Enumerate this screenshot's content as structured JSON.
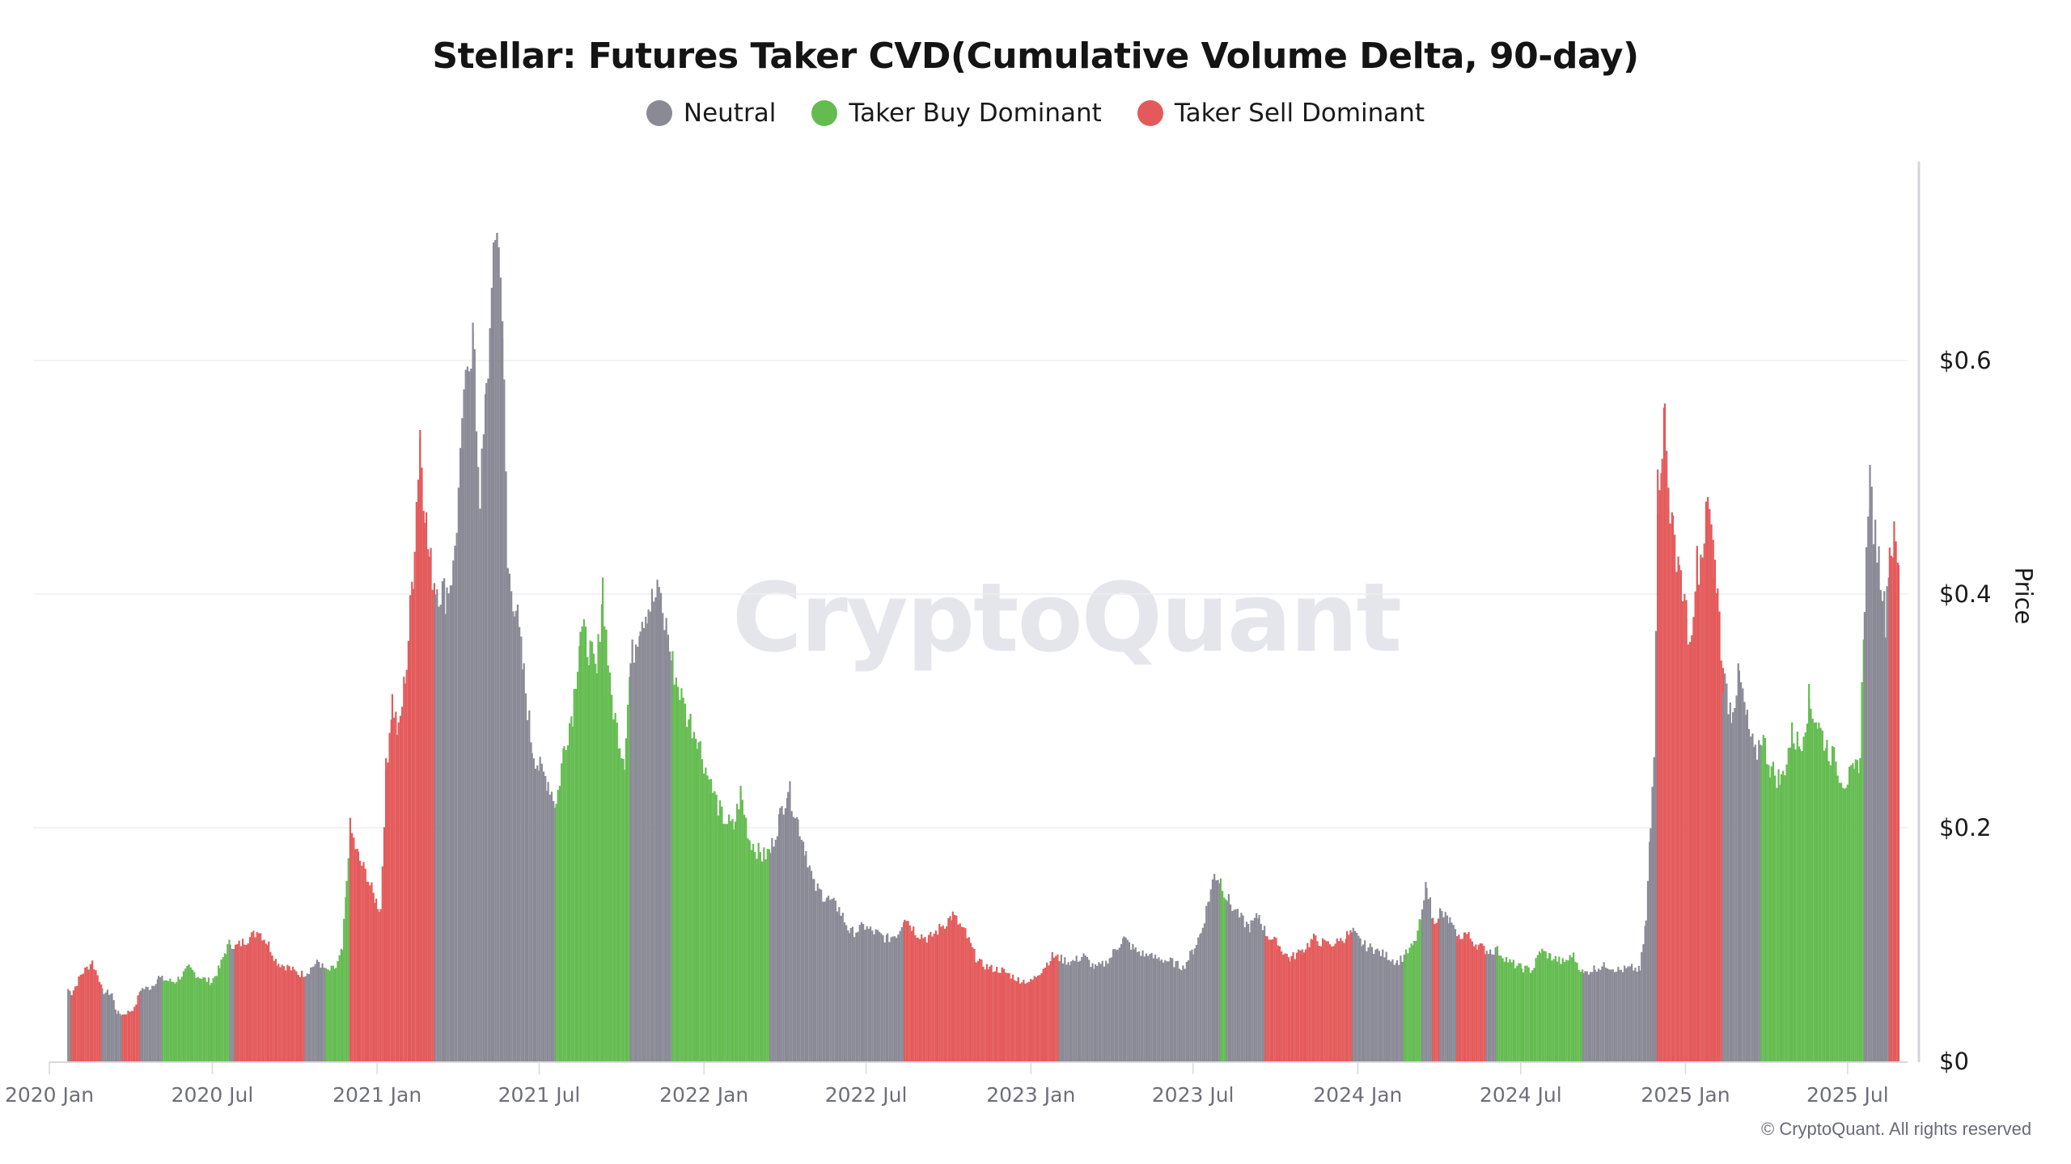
{
  "title": "Stellar: Futures Taker CVD(Cumulative Volume Delta, 90-day)",
  "legend": [
    {
      "key": "n",
      "label": "Neutral",
      "color": "#8a8a96"
    },
    {
      "key": "b",
      "label": "Taker Buy Dominant",
      "color": "#64bc50"
    },
    {
      "key": "s",
      "label": "Taker Sell Dominant",
      "color": "#e45a5a"
    }
  ],
  "watermark": "CryptoQuant",
  "copyright": "© CryptoQuant. All rights reserved",
  "y_axis": {
    "title": "Price",
    "ticks": [
      {
        "value": 0,
        "label": "$0"
      },
      {
        "value": 0.2,
        "label": "$0.2"
      },
      {
        "value": 0.4,
        "label": "$0.4"
      },
      {
        "value": 0.6,
        "label": "$0.6"
      }
    ]
  },
  "x_axis": {
    "ticks": [
      {
        "date": "2020-01-01",
        "label": "2020 Jan"
      },
      {
        "date": "2020-07-01",
        "label": "2020 Jul"
      },
      {
        "date": "2021-01-01",
        "label": "2021 Jan"
      },
      {
        "date": "2021-07-01",
        "label": "2021 Jul"
      },
      {
        "date": "2022-01-01",
        "label": "2022 Jan"
      },
      {
        "date": "2022-07-01",
        "label": "2022 Jul"
      },
      {
        "date": "2023-01-01",
        "label": "2023 Jan"
      },
      {
        "date": "2023-07-01",
        "label": "2023 Jul"
      },
      {
        "date": "2024-01-01",
        "label": "2024 Jan"
      },
      {
        "date": "2024-07-01",
        "label": "2024 Jul"
      },
      {
        "date": "2025-01-01",
        "label": "2025 Jan"
      },
      {
        "date": "2025-07-01",
        "label": "2025 Jul"
      }
    ]
  },
  "chart_data": {
    "type": "bar",
    "title": "Stellar: Futures Taker CVD(Cumulative Volume Delta, 90-day)",
    "xlabel": "",
    "ylabel": "Price",
    "ylim": [
      0,
      0.75
    ],
    "grid": true,
    "legend_position": "top",
    "legend": [
      "Neutral",
      "Taker Buy Dominant",
      "Taker Sell Dominant"
    ],
    "color_key": {
      "n": "Neutral",
      "b": "Taker Buy Dominant",
      "s": "Taker Sell Dominant"
    },
    "points": [
      [
        "2020-01-21",
        0.062,
        "n"
      ],
      [
        "2020-01-25",
        0.058,
        "s"
      ],
      [
        "2020-02-05",
        0.075,
        "s"
      ],
      [
        "2020-02-17",
        0.085,
        "s"
      ],
      [
        "2020-02-25",
        0.07,
        "s"
      ],
      [
        "2020-02-28",
        0.06,
        "n"
      ],
      [
        "2020-03-10",
        0.058,
        "n"
      ],
      [
        "2020-03-15",
        0.042,
        "n"
      ],
      [
        "2020-03-22",
        0.04,
        "s"
      ],
      [
        "2020-04-04",
        0.045,
        "s"
      ],
      [
        "2020-04-11",
        0.062,
        "n"
      ],
      [
        "2020-04-22",
        0.063,
        "n"
      ],
      [
        "2020-05-01",
        0.072,
        "n"
      ],
      [
        "2020-05-06",
        0.07,
        "b"
      ],
      [
        "2020-05-19",
        0.068,
        "b"
      ],
      [
        "2020-06-04",
        0.08,
        "b"
      ],
      [
        "2020-06-16",
        0.072,
        "b"
      ],
      [
        "2020-06-29",
        0.068,
        "b"
      ],
      [
        "2020-07-08",
        0.08,
        "b"
      ],
      [
        "2020-07-15",
        0.095,
        "b"
      ],
      [
        "2020-07-20",
        0.102,
        "n"
      ],
      [
        "2020-07-26",
        0.098,
        "s"
      ],
      [
        "2020-08-09",
        0.105,
        "s"
      ],
      [
        "2020-08-21",
        0.112,
        "s"
      ],
      [
        "2020-09-01",
        0.1,
        "s"
      ],
      [
        "2020-09-10",
        0.085,
        "s"
      ],
      [
        "2020-09-24",
        0.08,
        "s"
      ],
      [
        "2020-10-04",
        0.075,
        "s"
      ],
      [
        "2020-10-12",
        0.075,
        "n"
      ],
      [
        "2020-10-21",
        0.082,
        "n"
      ],
      [
        "2020-10-27",
        0.085,
        "n"
      ],
      [
        "2020-11-04",
        0.077,
        "b"
      ],
      [
        "2020-11-15",
        0.08,
        "b"
      ],
      [
        "2020-11-22",
        0.095,
        "b"
      ],
      [
        "2020-11-27",
        0.15,
        "b"
      ],
      [
        "2020-12-01",
        0.2,
        "s"
      ],
      [
        "2020-12-10",
        0.175,
        "s"
      ],
      [
        "2020-12-19",
        0.16,
        "s"
      ],
      [
        "2020-12-28",
        0.14,
        "s"
      ],
      [
        "2021-01-04",
        0.13,
        "s"
      ],
      [
        "2021-01-10",
        0.25,
        "s"
      ],
      [
        "2021-01-17",
        0.31,
        "s"
      ],
      [
        "2021-01-24",
        0.28,
        "s"
      ],
      [
        "2021-02-02",
        0.34,
        "s"
      ],
      [
        "2021-02-09",
        0.42,
        "s"
      ],
      [
        "2021-02-17",
        0.54,
        "s"
      ],
      [
        "2021-02-22",
        0.48,
        "s"
      ],
      [
        "2021-02-27",
        0.43,
        "s"
      ],
      [
        "2021-03-06",
        0.41,
        "n"
      ],
      [
        "2021-03-17",
        0.4,
        "n"
      ],
      [
        "2021-03-26",
        0.42,
        "n"
      ],
      [
        "2021-04-05",
        0.53,
        "n"
      ],
      [
        "2021-04-11",
        0.6,
        "n"
      ],
      [
        "2021-04-17",
        0.62,
        "n"
      ],
      [
        "2021-04-25",
        0.48,
        "n"
      ],
      [
        "2021-05-02",
        0.57,
        "n"
      ],
      [
        "2021-05-08",
        0.65,
        "n"
      ],
      [
        "2021-05-14",
        0.72,
        "n"
      ],
      [
        "2021-05-20",
        0.64,
        "n"
      ],
      [
        "2021-05-26",
        0.42,
        "n"
      ],
      [
        "2021-06-04",
        0.39,
        "n"
      ],
      [
        "2021-06-13",
        0.33,
        "n"
      ],
      [
        "2021-06-22",
        0.27,
        "n"
      ],
      [
        "2021-07-01",
        0.25,
        "n"
      ],
      [
        "2021-07-10",
        0.24,
        "n"
      ],
      [
        "2021-07-19",
        0.22,
        "b"
      ],
      [
        "2021-07-28",
        0.27,
        "b"
      ],
      [
        "2021-08-06",
        0.3,
        "b"
      ],
      [
        "2021-08-15",
        0.37,
        "b"
      ],
      [
        "2021-08-24",
        0.355,
        "b"
      ],
      [
        "2021-09-02",
        0.33,
        "b"
      ],
      [
        "2021-09-09",
        0.41,
        "b"
      ],
      [
        "2021-09-17",
        0.32,
        "b"
      ],
      [
        "2021-09-26",
        0.28,
        "b"
      ],
      [
        "2021-10-03",
        0.26,
        "b"
      ],
      [
        "2021-10-10",
        0.34,
        "n"
      ],
      [
        "2021-10-21",
        0.38,
        "n"
      ],
      [
        "2021-10-30",
        0.39,
        "n"
      ],
      [
        "2021-11-11",
        0.4,
        "n"
      ],
      [
        "2021-11-19",
        0.37,
        "n"
      ],
      [
        "2021-11-26",
        0.34,
        "b"
      ],
      [
        "2021-12-10",
        0.3,
        "b"
      ],
      [
        "2021-12-23",
        0.28,
        "b"
      ],
      [
        "2022-01-06",
        0.24,
        "b"
      ],
      [
        "2022-01-20",
        0.21,
        "b"
      ],
      [
        "2022-02-02",
        0.2,
        "b"
      ],
      [
        "2022-02-10",
        0.23,
        "b"
      ],
      [
        "2022-02-20",
        0.19,
        "b"
      ],
      [
        "2022-03-06",
        0.175,
        "b"
      ],
      [
        "2022-03-15",
        0.18,
        "n"
      ],
      [
        "2022-03-26",
        0.21,
        "n"
      ],
      [
        "2022-04-04",
        0.235,
        "n"
      ],
      [
        "2022-04-15",
        0.205,
        "n"
      ],
      [
        "2022-04-24",
        0.18,
        "n"
      ],
      [
        "2022-05-03",
        0.15,
        "n"
      ],
      [
        "2022-05-17",
        0.14,
        "n"
      ],
      [
        "2022-05-31",
        0.13,
        "n"
      ],
      [
        "2022-06-13",
        0.11,
        "n"
      ],
      [
        "2022-06-27",
        0.115,
        "n"
      ],
      [
        "2022-07-11",
        0.11,
        "n"
      ],
      [
        "2022-07-24",
        0.105,
        "n"
      ],
      [
        "2022-08-05",
        0.11,
        "n"
      ],
      [
        "2022-08-12",
        0.125,
        "s"
      ],
      [
        "2022-08-25",
        0.11,
        "s"
      ],
      [
        "2022-09-08",
        0.105,
        "s"
      ],
      [
        "2022-09-22",
        0.115,
        "s"
      ],
      [
        "2022-10-05",
        0.125,
        "s"
      ],
      [
        "2022-10-19",
        0.11,
        "s"
      ],
      [
        "2022-11-02",
        0.085,
        "s"
      ],
      [
        "2022-11-15",
        0.08,
        "s"
      ],
      [
        "2022-11-29",
        0.078,
        "s"
      ],
      [
        "2022-12-17",
        0.07,
        "s"
      ],
      [
        "2022-12-31",
        0.068,
        "s"
      ],
      [
        "2023-01-14",
        0.08,
        "s"
      ],
      [
        "2023-01-24",
        0.09,
        "s"
      ],
      [
        "2023-02-01",
        0.088,
        "n"
      ],
      [
        "2023-02-14",
        0.085,
        "n"
      ],
      [
        "2023-02-28",
        0.09,
        "n"
      ],
      [
        "2023-03-13",
        0.08,
        "n"
      ],
      [
        "2023-03-27",
        0.085,
        "n"
      ],
      [
        "2023-04-05",
        0.097,
        "n"
      ],
      [
        "2023-04-14",
        0.105,
        "n"
      ],
      [
        "2023-04-27",
        0.095,
        "n"
      ],
      [
        "2023-05-11",
        0.09,
        "n"
      ],
      [
        "2023-05-24",
        0.088,
        "n"
      ],
      [
        "2023-06-07",
        0.085,
        "n"
      ],
      [
        "2023-06-19",
        0.08,
        "n"
      ],
      [
        "2023-06-30",
        0.095,
        "n"
      ],
      [
        "2023-07-09",
        0.11,
        "n"
      ],
      [
        "2023-07-18",
        0.14,
        "n"
      ],
      [
        "2023-07-24",
        0.16,
        "n"
      ],
      [
        "2023-07-31",
        0.155,
        "b"
      ],
      [
        "2023-08-07",
        0.14,
        "n"
      ],
      [
        "2023-08-19",
        0.125,
        "n"
      ],
      [
        "2023-09-01",
        0.115,
        "n"
      ],
      [
        "2023-09-12",
        0.125,
        "n"
      ],
      [
        "2023-09-19",
        0.11,
        "s"
      ],
      [
        "2023-10-03",
        0.1,
        "s"
      ],
      [
        "2023-10-16",
        0.088,
        "s"
      ],
      [
        "2023-10-30",
        0.095,
        "s"
      ],
      [
        "2023-11-12",
        0.105,
        "s"
      ],
      [
        "2023-11-26",
        0.1,
        "s"
      ],
      [
        "2023-12-10",
        0.102,
        "s"
      ],
      [
        "2023-12-19",
        0.108,
        "s"
      ],
      [
        "2023-12-26",
        0.11,
        "n"
      ],
      [
        "2024-01-06",
        0.1,
        "n"
      ],
      [
        "2024-01-20",
        0.095,
        "n"
      ],
      [
        "2024-02-02",
        0.09,
        "n"
      ],
      [
        "2024-02-13",
        0.085,
        "n"
      ],
      [
        "2024-02-21",
        0.09,
        "b"
      ],
      [
        "2024-03-03",
        0.1,
        "b"
      ],
      [
        "2024-03-12",
        0.125,
        "n"
      ],
      [
        "2024-03-17",
        0.155,
        "n"
      ],
      [
        "2024-03-24",
        0.12,
        "s"
      ],
      [
        "2024-04-01",
        0.128,
        "n"
      ],
      [
        "2024-04-12",
        0.12,
        "n"
      ],
      [
        "2024-04-20",
        0.105,
        "s"
      ],
      [
        "2024-04-29",
        0.11,
        "s"
      ],
      [
        "2024-05-12",
        0.1,
        "s"
      ],
      [
        "2024-05-23",
        0.095,
        "n"
      ],
      [
        "2024-06-04",
        0.095,
        "b"
      ],
      [
        "2024-06-18",
        0.085,
        "b"
      ],
      [
        "2024-07-01",
        0.08,
        "b"
      ],
      [
        "2024-07-13",
        0.078,
        "b"
      ],
      [
        "2024-07-22",
        0.095,
        "b"
      ],
      [
        "2024-08-02",
        0.09,
        "b"
      ],
      [
        "2024-08-16",
        0.085,
        "b"
      ],
      [
        "2024-08-28",
        0.09,
        "b"
      ],
      [
        "2024-09-08",
        0.075,
        "n"
      ],
      [
        "2024-09-21",
        0.08,
        "n"
      ],
      [
        "2024-10-05",
        0.082,
        "n"
      ],
      [
        "2024-10-18",
        0.078,
        "n"
      ],
      [
        "2024-11-01",
        0.08,
        "n"
      ],
      [
        "2024-11-10",
        0.078,
        "n"
      ],
      [
        "2024-11-17",
        0.12,
        "n"
      ],
      [
        "2024-11-22",
        0.2,
        "n"
      ],
      [
        "2024-11-26",
        0.27,
        "n"
      ],
      [
        "2024-11-30",
        0.49,
        "s"
      ],
      [
        "2024-12-05",
        0.53,
        "s"
      ],
      [
        "2024-12-08",
        0.555,
        "s"
      ],
      [
        "2024-12-12",
        0.49,
        "s"
      ],
      [
        "2024-12-17",
        0.45,
        "s"
      ],
      [
        "2024-12-24",
        0.43,
        "s"
      ],
      [
        "2025-01-01",
        0.38,
        "s"
      ],
      [
        "2025-01-07",
        0.35,
        "s"
      ],
      [
        "2025-01-13",
        0.43,
        "s"
      ],
      [
        "2025-01-19",
        0.42,
        "s"
      ],
      [
        "2025-01-25",
        0.485,
        "s"
      ],
      [
        "2025-01-31",
        0.43,
        "s"
      ],
      [
        "2025-02-05",
        0.4,
        "s"
      ],
      [
        "2025-02-11",
        0.33,
        "n"
      ],
      [
        "2025-02-20",
        0.3,
        "n"
      ],
      [
        "2025-03-01",
        0.33,
        "n"
      ],
      [
        "2025-03-10",
        0.29,
        "n"
      ],
      [
        "2025-03-19",
        0.26,
        "n"
      ],
      [
        "2025-03-26",
        0.28,
        "b"
      ],
      [
        "2025-04-06",
        0.25,
        "b"
      ],
      [
        "2025-04-17",
        0.24,
        "b"
      ],
      [
        "2025-04-29",
        0.28,
        "b"
      ],
      [
        "2025-05-08",
        0.27,
        "b"
      ],
      [
        "2025-05-18",
        0.31,
        "b"
      ],
      [
        "2025-05-27",
        0.29,
        "b"
      ],
      [
        "2025-06-07",
        0.27,
        "b"
      ],
      [
        "2025-06-17",
        0.255,
        "b"
      ],
      [
        "2025-06-26",
        0.24,
        "b"
      ],
      [
        "2025-07-07",
        0.245,
        "b"
      ],
      [
        "2025-07-14",
        0.26,
        "b"
      ],
      [
        "2025-07-19",
        0.4,
        "n"
      ],
      [
        "2025-07-25",
        0.49,
        "n"
      ],
      [
        "2025-07-31",
        0.45,
        "n"
      ],
      [
        "2025-08-06",
        0.42,
        "n"
      ],
      [
        "2025-08-11",
        0.38,
        "n"
      ],
      [
        "2025-08-16",
        0.44,
        "s"
      ],
      [
        "2025-08-21",
        0.445,
        "s"
      ],
      [
        "2025-08-26",
        0.425,
        "s"
      ]
    ]
  }
}
